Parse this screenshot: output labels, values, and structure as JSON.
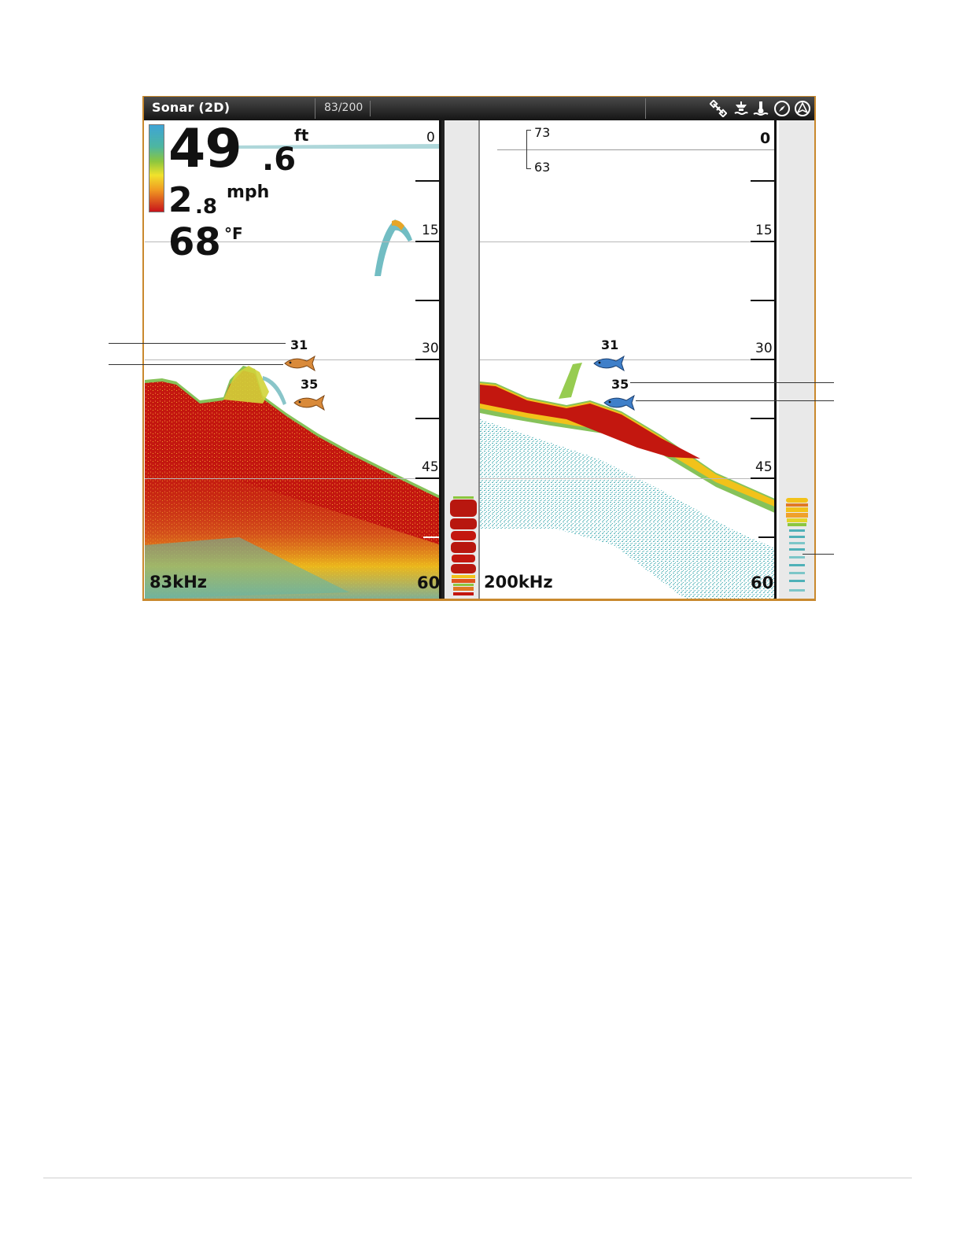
{
  "title_bar": {
    "title": "Sonar (2D)",
    "counter": "83/200",
    "status_icons": [
      "gps-satellite-icon",
      "transducer-icon",
      "water-temp-icon",
      "compass-icon",
      "navigation-icon"
    ]
  },
  "readouts": {
    "depth_integer": "49",
    "depth_decimal": ".6",
    "depth_unit": "ft",
    "speed_integer": "2",
    "speed_decimal": ".8",
    "speed_unit": "mph",
    "temperature": "68",
    "temperature_unit": "°F"
  },
  "left_pane": {
    "frequency": "83kHz",
    "depth_scale": [
      "0",
      "15",
      "30",
      "45",
      "60"
    ],
    "fish_ids": [
      "31",
      "35"
    ],
    "fish_color": "#d98a3a"
  },
  "right_pane": {
    "frequency": "200kHz",
    "depth_scale": [
      "0",
      "15",
      "30",
      "45",
      "60"
    ],
    "zoom_bracket_top": "73",
    "zoom_bracket_bottom": "63",
    "fish_ids": [
      "31",
      "35"
    ],
    "fish_color": "#3f7fc9"
  },
  "colors": {
    "sonar_strong": "#c3170f",
    "sonar_medium": "#f2c21a",
    "sonar_weak": "#4fb1b8",
    "frame": "#c9892e"
  }
}
